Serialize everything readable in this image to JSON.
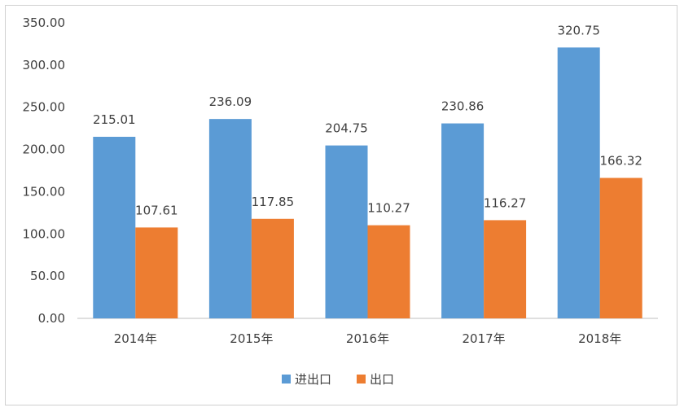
{
  "chart_data": {
    "type": "bar",
    "categories": [
      "2014年",
      "2015年",
      "2016年",
      "2017年",
      "2018年"
    ],
    "series": [
      {
        "name": "进出口",
        "values": [
          215.01,
          236.09,
          204.75,
          230.86,
          320.75
        ],
        "color": "#5B9BD5",
        "labels": [
          "215.01",
          "236.09",
          "204.75",
          "230.86",
          "320.75"
        ]
      },
      {
        "name": "出口",
        "values": [
          107.61,
          117.85,
          110.27,
          116.27,
          166.32
        ],
        "color": "#ED7D31",
        "labels": [
          "107.61",
          "117.85",
          "110.27",
          "116.27",
          "166.32"
        ]
      }
    ],
    "ylim": [
      0,
      350
    ],
    "yticks": [
      "0.00",
      "50.00",
      "100.00",
      "150.00",
      "200.00",
      "250.00",
      "300.00",
      "350.00"
    ],
    "grid": false,
    "legend": "bottom"
  }
}
